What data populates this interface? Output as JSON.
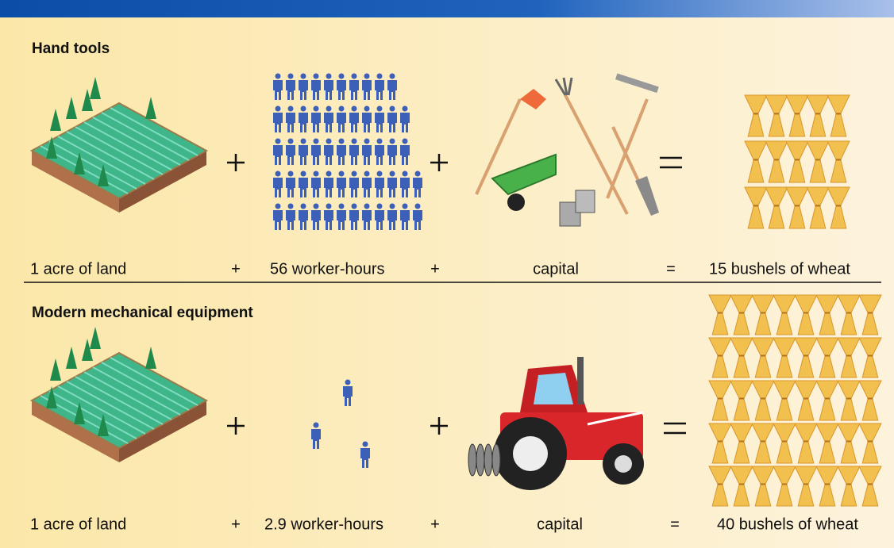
{
  "sections": [
    {
      "title": "Hand tools",
      "labels": [
        "1 acre of land",
        "+",
        "56 worker-hours",
        "+",
        "capital",
        "=",
        "15 bushels of wheat"
      ]
    },
    {
      "title": "Modern mechanical equipment",
      "labels": [
        "1 acre of land",
        "+",
        "2.9 worker-hours",
        "+",
        "capital",
        "=",
        "40 bushels of wheat"
      ]
    }
  ]
}
